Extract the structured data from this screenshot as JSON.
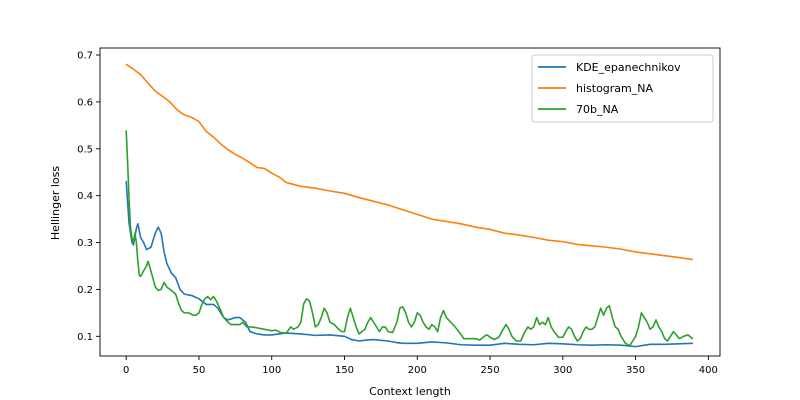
{
  "chart_data": {
    "type": "line",
    "title": "",
    "xlabel": "Context length",
    "ylabel": "Hellinger loss",
    "xlim": [
      -18,
      408
    ],
    "ylim": [
      0.058,
      0.715
    ],
    "xticks": [
      0,
      50,
      100,
      150,
      200,
      250,
      300,
      350,
      400
    ],
    "xtick_labels": [
      "0",
      "50",
      "100",
      "150",
      "200",
      "250",
      "300",
      "350",
      "400"
    ],
    "yticks": [
      0.1,
      0.2,
      0.3,
      0.4,
      0.5,
      0.6,
      0.7
    ],
    "ytick_labels": [
      "0.1",
      "0.2",
      "0.3",
      "0.4",
      "0.5",
      "0.6",
      "0.7"
    ],
    "grid": false,
    "legend_position": "top-right",
    "series": [
      {
        "name": "KDE_epanechnikov",
        "color": "#1f77b4",
        "points": [
          [
            0,
            0.43
          ],
          [
            2,
            0.34
          ],
          [
            4,
            0.3
          ],
          [
            5,
            0.295
          ],
          [
            7,
            0.33
          ],
          [
            8,
            0.34
          ],
          [
            10,
            0.31
          ],
          [
            12,
            0.3
          ],
          [
            14,
            0.285
          ],
          [
            17,
            0.29
          ],
          [
            20,
            0.32
          ],
          [
            22,
            0.333
          ],
          [
            24,
            0.32
          ],
          [
            26,
            0.28
          ],
          [
            28,
            0.255
          ],
          [
            31,
            0.235
          ],
          [
            34,
            0.225
          ],
          [
            37,
            0.2
          ],
          [
            40,
            0.19
          ],
          [
            45,
            0.187
          ],
          [
            50,
            0.18
          ],
          [
            55,
            0.168
          ],
          [
            60,
            0.168
          ],
          [
            63,
            0.16
          ],
          [
            67,
            0.14
          ],
          [
            70,
            0.135
          ],
          [
            75,
            0.14
          ],
          [
            78,
            0.14
          ],
          [
            82,
            0.13
          ],
          [
            85,
            0.11
          ],
          [
            90,
            0.105
          ],
          [
            95,
            0.103
          ],
          [
            100,
            0.103
          ],
          [
            105,
            0.105
          ],
          [
            110,
            0.107
          ],
          [
            120,
            0.105
          ],
          [
            130,
            0.102
          ],
          [
            140,
            0.103
          ],
          [
            150,
            0.1
          ],
          [
            155,
            0.093
          ],
          [
            160,
            0.09
          ],
          [
            165,
            0.092
          ],
          [
            170,
            0.093
          ],
          [
            180,
            0.09
          ],
          [
            185,
            0.087
          ],
          [
            190,
            0.085
          ],
          [
            200,
            0.085
          ],
          [
            210,
            0.088
          ],
          [
            220,
            0.086
          ],
          [
            230,
            0.082
          ],
          [
            240,
            0.081
          ],
          [
            250,
            0.081
          ],
          [
            260,
            0.085
          ],
          [
            270,
            0.083
          ],
          [
            280,
            0.082
          ],
          [
            290,
            0.085
          ],
          [
            300,
            0.084
          ],
          [
            310,
            0.082
          ],
          [
            320,
            0.081
          ],
          [
            330,
            0.082
          ],
          [
            340,
            0.081
          ],
          [
            350,
            0.078
          ],
          [
            360,
            0.083
          ],
          [
            370,
            0.083
          ],
          [
            380,
            0.084
          ],
          [
            389,
            0.085
          ]
        ]
      },
      {
        "name": "histogram_NA",
        "color": "#ff7f0e",
        "points": [
          [
            0,
            0.68
          ],
          [
            5,
            0.67
          ],
          [
            10,
            0.658
          ],
          [
            15,
            0.64
          ],
          [
            20,
            0.623
          ],
          [
            25,
            0.612
          ],
          [
            30,
            0.6
          ],
          [
            35,
            0.583
          ],
          [
            40,
            0.572
          ],
          [
            45,
            0.567
          ],
          [
            50,
            0.558
          ],
          [
            55,
            0.537
          ],
          [
            60,
            0.525
          ],
          [
            65,
            0.51
          ],
          [
            70,
            0.498
          ],
          [
            75,
            0.488
          ],
          [
            80,
            0.48
          ],
          [
            85,
            0.47
          ],
          [
            90,
            0.46
          ],
          [
            95,
            0.458
          ],
          [
            100,
            0.448
          ],
          [
            105,
            0.44
          ],
          [
            110,
            0.428
          ],
          [
            115,
            0.424
          ],
          [
            120,
            0.42
          ],
          [
            130,
            0.416
          ],
          [
            140,
            0.41
          ],
          [
            150,
            0.405
          ],
          [
            160,
            0.396
          ],
          [
            170,
            0.388
          ],
          [
            180,
            0.38
          ],
          [
            190,
            0.37
          ],
          [
            200,
            0.36
          ],
          [
            210,
            0.35
          ],
          [
            220,
            0.345
          ],
          [
            230,
            0.34
          ],
          [
            240,
            0.333
          ],
          [
            250,
            0.328
          ],
          [
            260,
            0.32
          ],
          [
            270,
            0.316
          ],
          [
            280,
            0.311
          ],
          [
            290,
            0.305
          ],
          [
            300,
            0.302
          ],
          [
            310,
            0.296
          ],
          [
            320,
            0.293
          ],
          [
            330,
            0.29
          ],
          [
            340,
            0.286
          ],
          [
            350,
            0.28
          ],
          [
            360,
            0.276
          ],
          [
            370,
            0.272
          ],
          [
            380,
            0.268
          ],
          [
            389,
            0.264
          ]
        ]
      },
      {
        "name": "70b_NA",
        "color": "#2ca02c",
        "points": [
          [
            0,
            0.538
          ],
          [
            1,
            0.47
          ],
          [
            2,
            0.39
          ],
          [
            3,
            0.33
          ],
          [
            4,
            0.31
          ],
          [
            5,
            0.3
          ],
          [
            6,
            0.32
          ],
          [
            7,
            0.3
          ],
          [
            8,
            0.26
          ],
          [
            9,
            0.23
          ],
          [
            10,
            0.228
          ],
          [
            12,
            0.24
          ],
          [
            14,
            0.25
          ],
          [
            15,
            0.26
          ],
          [
            16,
            0.25
          ],
          [
            18,
            0.228
          ],
          [
            20,
            0.205
          ],
          [
            22,
            0.198
          ],
          [
            24,
            0.2
          ],
          [
            26,
            0.215
          ],
          [
            28,
            0.205
          ],
          [
            31,
            0.198
          ],
          [
            34,
            0.19
          ],
          [
            36,
            0.17
          ],
          [
            38,
            0.155
          ],
          [
            40,
            0.15
          ],
          [
            43,
            0.15
          ],
          [
            46,
            0.145
          ],
          [
            48,
            0.145
          ],
          [
            50,
            0.15
          ],
          [
            52,
            0.168
          ],
          [
            54,
            0.18
          ],
          [
            56,
            0.185
          ],
          [
            58,
            0.178
          ],
          [
            60,
            0.185
          ],
          [
            62,
            0.175
          ],
          [
            65,
            0.155
          ],
          [
            67,
            0.14
          ],
          [
            70,
            0.13
          ],
          [
            72,
            0.125
          ],
          [
            75,
            0.125
          ],
          [
            78,
            0.125
          ],
          [
            80,
            0.13
          ],
          [
            83,
            0.12
          ],
          [
            86,
            0.12
          ],
          [
            90,
            0.118
          ],
          [
            95,
            0.115
          ],
          [
            100,
            0.112
          ],
          [
            103,
            0.113
          ],
          [
            106,
            0.108
          ],
          [
            110,
            0.107
          ],
          [
            113,
            0.12
          ],
          [
            115,
            0.115
          ],
          [
            118,
            0.12
          ],
          [
            120,
            0.13
          ],
          [
            122,
            0.17
          ],
          [
            124,
            0.18
          ],
          [
            126,
            0.175
          ],
          [
            128,
            0.15
          ],
          [
            130,
            0.12
          ],
          [
            132,
            0.125
          ],
          [
            134,
            0.14
          ],
          [
            136,
            0.16
          ],
          [
            138,
            0.15
          ],
          [
            140,
            0.13
          ],
          [
            143,
            0.125
          ],
          [
            146,
            0.115
          ],
          [
            148,
            0.11
          ],
          [
            150,
            0.11
          ],
          [
            152,
            0.14
          ],
          [
            154,
            0.16
          ],
          [
            156,
            0.14
          ],
          [
            158,
            0.12
          ],
          [
            160,
            0.105
          ],
          [
            162,
            0.11
          ],
          [
            164,
            0.115
          ],
          [
            166,
            0.13
          ],
          [
            168,
            0.14
          ],
          [
            170,
            0.13
          ],
          [
            172,
            0.12
          ],
          [
            174,
            0.11
          ],
          [
            176,
            0.12
          ],
          [
            178,
            0.12
          ],
          [
            180,
            0.11
          ],
          [
            183,
            0.108
          ],
          [
            186,
            0.13
          ],
          [
            188,
            0.16
          ],
          [
            190,
            0.163
          ],
          [
            192,
            0.15
          ],
          [
            194,
            0.13
          ],
          [
            196,
            0.12
          ],
          [
            198,
            0.13
          ],
          [
            200,
            0.15
          ],
          [
            202,
            0.145
          ],
          [
            204,
            0.13
          ],
          [
            206,
            0.12
          ],
          [
            208,
            0.115
          ],
          [
            210,
            0.125
          ],
          [
            212,
            0.12
          ],
          [
            214,
            0.11
          ],
          [
            216,
            0.14
          ],
          [
            218,
            0.155
          ],
          [
            220,
            0.14
          ],
          [
            223,
            0.13
          ],
          [
            226,
            0.12
          ],
          [
            229,
            0.108
          ],
          [
            232,
            0.095
          ],
          [
            236,
            0.095
          ],
          [
            240,
            0.095
          ],
          [
            243,
            0.092
          ],
          [
            246,
            0.1
          ],
          [
            248,
            0.103
          ],
          [
            250,
            0.098
          ],
          [
            253,
            0.093
          ],
          [
            256,
            0.098
          ],
          [
            259,
            0.115
          ],
          [
            261,
            0.125
          ],
          [
            263,
            0.115
          ],
          [
            265,
            0.1
          ],
          [
            268,
            0.09
          ],
          [
            271,
            0.09
          ],
          [
            274,
            0.11
          ],
          [
            276,
            0.12
          ],
          [
            278,
            0.115
          ],
          [
            280,
            0.12
          ],
          [
            282,
            0.14
          ],
          [
            284,
            0.125
          ],
          [
            286,
            0.13
          ],
          [
            288,
            0.125
          ],
          [
            290,
            0.14
          ],
          [
            292,
            0.12
          ],
          [
            294,
            0.11
          ],
          [
            297,
            0.098
          ],
          [
            300,
            0.098
          ],
          [
            302,
            0.11
          ],
          [
            304,
            0.12
          ],
          [
            306,
            0.115
          ],
          [
            308,
            0.1
          ],
          [
            310,
            0.09
          ],
          [
            312,
            0.095
          ],
          [
            314,
            0.11
          ],
          [
            316,
            0.12
          ],
          [
            318,
            0.115
          ],
          [
            320,
            0.115
          ],
          [
            322,
            0.12
          ],
          [
            324,
            0.14
          ],
          [
            326,
            0.16
          ],
          [
            328,
            0.145
          ],
          [
            330,
            0.16
          ],
          [
            332,
            0.165
          ],
          [
            334,
            0.14
          ],
          [
            336,
            0.12
          ],
          [
            338,
            0.115
          ],
          [
            340,
            0.1
          ],
          [
            343,
            0.085
          ],
          [
            346,
            0.08
          ],
          [
            348,
            0.09
          ],
          [
            350,
            0.1
          ],
          [
            352,
            0.12
          ],
          [
            354,
            0.15
          ],
          [
            356,
            0.14
          ],
          [
            358,
            0.13
          ],
          [
            360,
            0.115
          ],
          [
            362,
            0.12
          ],
          [
            364,
            0.135
          ],
          [
            366,
            0.12
          ],
          [
            368,
            0.11
          ],
          [
            370,
            0.095
          ],
          [
            372,
            0.09
          ],
          [
            374,
            0.1
          ],
          [
            376,
            0.11
          ],
          [
            378,
            0.103
          ],
          [
            380,
            0.095
          ],
          [
            383,
            0.1
          ],
          [
            386,
            0.103
          ],
          [
            389,
            0.095
          ]
        ]
      }
    ]
  }
}
